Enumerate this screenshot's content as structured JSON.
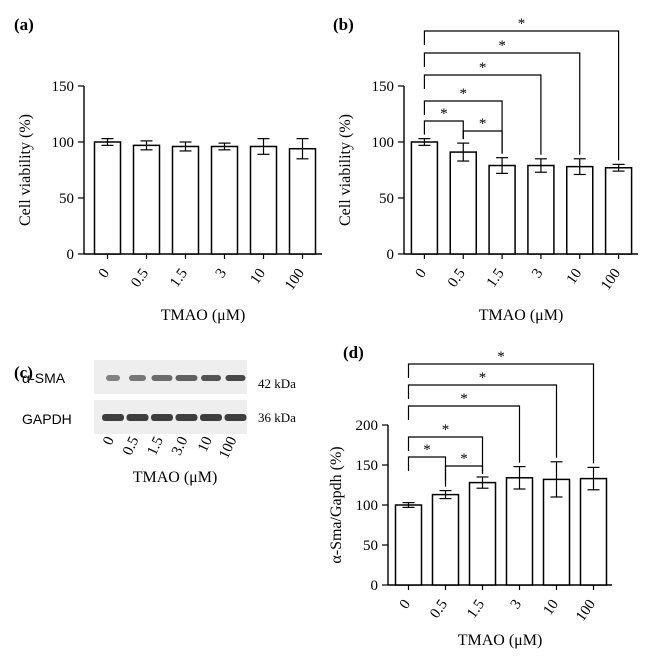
{
  "panels": {
    "a": {
      "label": "(a)"
    },
    "b": {
      "label": "(b)"
    },
    "c": {
      "label": "(c)"
    },
    "d": {
      "label": "(d)"
    }
  },
  "western_blot": {
    "rows": [
      {
        "name": "α-SMA",
        "kda": "42 kDa"
      },
      {
        "name": "GAPDH",
        "kda": "36 kDa"
      }
    ],
    "lanes": [
      "0",
      "0.5",
      "1.5",
      "3.0",
      "10",
      "100"
    ],
    "xlabel": "TMAO (μM)"
  },
  "chart_data": [
    {
      "panel": "a",
      "type": "bar",
      "categories": [
        "0",
        "0.5",
        "1.5",
        "3",
        "10",
        "100"
      ],
      "values": [
        100,
        97,
        96,
        96,
        96,
        94
      ],
      "errors": [
        3,
        4,
        4,
        3,
        7,
        9
      ],
      "ylabel": "Cell viability (%)",
      "xlabel": "TMAO (μM)",
      "ylim": [
        0,
        150
      ],
      "yticks": [
        0,
        50,
        100,
        150
      ],
      "significance": []
    },
    {
      "panel": "b",
      "type": "bar",
      "categories": [
        "0",
        "0.5",
        "1.5",
        "3",
        "10",
        "100"
      ],
      "values": [
        100,
        91,
        79,
        79,
        78,
        77
      ],
      "errors": [
        3,
        8,
        7,
        6,
        7,
        3
      ],
      "ylabel": "Cell viability (%)",
      "xlabel": "TMAO (μM)",
      "ylim": [
        0,
        150
      ],
      "yticks": [
        0,
        50,
        100,
        150
      ],
      "significance": [
        {
          "from": 0,
          "to": 1,
          "label": "*"
        },
        {
          "from": 1,
          "to": 2,
          "label": "*"
        },
        {
          "from": 0,
          "to": 2,
          "label": "*"
        },
        {
          "from": 0,
          "to": 3,
          "label": "*"
        },
        {
          "from": 0,
          "to": 4,
          "label": "*"
        },
        {
          "from": 0,
          "to": 5,
          "label": "*"
        }
      ]
    },
    {
      "panel": "d",
      "type": "bar",
      "categories": [
        "0",
        "0.5",
        "1.5",
        "3",
        "10",
        "100"
      ],
      "values": [
        100,
        113,
        128,
        134,
        132,
        133
      ],
      "errors": [
        3,
        5,
        7,
        14,
        22,
        14
      ],
      "ylabel": "α-Sma/Gapdh (%)",
      "xlabel": "TMAO (μM)",
      "ylim": [
        0,
        200
      ],
      "yticks": [
        0,
        50,
        100,
        150,
        200
      ],
      "significance": [
        {
          "from": 0,
          "to": 1,
          "label": "*"
        },
        {
          "from": 1,
          "to": 2,
          "label": "*"
        },
        {
          "from": 0,
          "to": 2,
          "label": "*"
        },
        {
          "from": 0,
          "to": 3,
          "label": "*"
        },
        {
          "from": 0,
          "to": 4,
          "label": "*"
        },
        {
          "from": 0,
          "to": 5,
          "label": "*"
        }
      ]
    }
  ]
}
